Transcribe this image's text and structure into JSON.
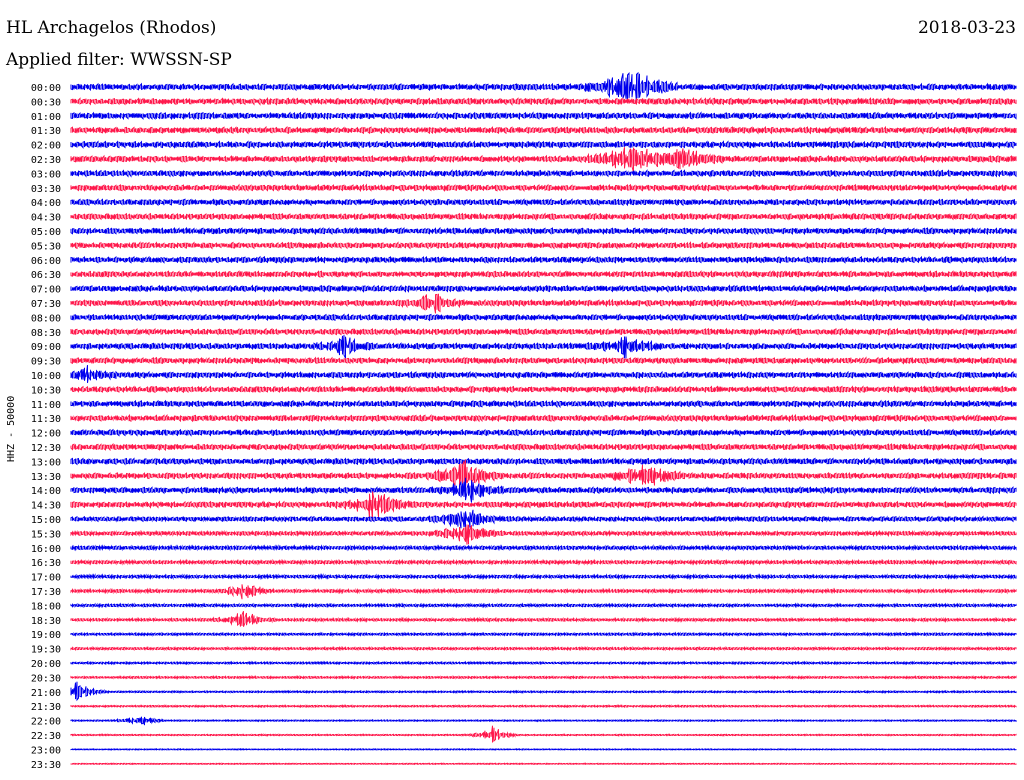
{
  "header": {
    "station": "HL Archagelos (Rhodos)",
    "date": "2018-03-23",
    "filter": "Applied filter: WWSSN-SP"
  },
  "chart_data": {
    "type": "line",
    "title": "HL Archagelos (Rhodos)",
    "ylabel": "HHZ - 50000",
    "trace_colors": [
      "#0000ee",
      "#ff1a4d"
    ],
    "row_labels": [
      "00:00",
      "00:30",
      "01:00",
      "01:30",
      "02:00",
      "02:30",
      "03:00",
      "03:30",
      "04:00",
      "04:30",
      "05:00",
      "05:30",
      "06:00",
      "06:30",
      "07:00",
      "07:30",
      "08:00",
      "08:30",
      "09:00",
      "09:30",
      "10:00",
      "10:30",
      "11:00",
      "11:30",
      "12:00",
      "12:30",
      "13:00",
      "13:30",
      "14:00",
      "14:30",
      "15:00",
      "15:30",
      "16:00",
      "16:30",
      "17:00",
      "17:30",
      "18:00",
      "18:30",
      "19:00",
      "19:30",
      "20:00",
      "20:30",
      "21:00",
      "21:30",
      "22:00",
      "22:30",
      "23:00",
      "23:30"
    ],
    "row_minutes": 30,
    "noise_level": [
      0.9,
      0.9,
      0.9,
      0.9,
      0.9,
      0.9,
      0.85,
      0.85,
      0.85,
      0.85,
      0.85,
      0.85,
      0.85,
      0.85,
      0.85,
      0.85,
      0.85,
      0.85,
      0.85,
      0.85,
      0.85,
      0.85,
      0.85,
      0.85,
      0.85,
      0.85,
      0.85,
      0.85,
      0.85,
      0.85,
      0.7,
      0.6,
      0.55,
      0.5,
      0.45,
      0.45,
      0.4,
      0.4,
      0.35,
      0.35,
      0.3,
      0.3,
      0.25,
      0.25,
      0.2,
      0.2,
      0.15,
      0.15
    ],
    "events": [
      {
        "row": 0,
        "minute": 17.8,
        "amplitude": 6,
        "width": 0.6
      },
      {
        "row": 5,
        "minute": 17.8,
        "amplitude": 4,
        "width": 0.6
      },
      {
        "row": 5,
        "minute": 19.5,
        "amplitude": 3,
        "width": 0.5
      },
      {
        "row": 15,
        "minute": 11.5,
        "amplitude": 3,
        "width": 0.4
      },
      {
        "row": 18,
        "minute": 8.7,
        "amplitude": 3,
        "width": 0.4
      },
      {
        "row": 18,
        "minute": 17.6,
        "amplitude": 3,
        "width": 0.5
      },
      {
        "row": 20,
        "minute": 0.5,
        "amplitude": 2.5,
        "width": 0.4
      },
      {
        "row": 27,
        "minute": 12.5,
        "amplitude": 4,
        "width": 0.5
      },
      {
        "row": 27,
        "minute": 18.2,
        "amplitude": 4,
        "width": 0.5
      },
      {
        "row": 28,
        "minute": 12.6,
        "amplitude": 3,
        "width": 0.5
      },
      {
        "row": 29,
        "minute": 9.6,
        "amplitude": 4,
        "width": 0.5
      },
      {
        "row": 30,
        "minute": 12.5,
        "amplitude": 3,
        "width": 0.5
      },
      {
        "row": 31,
        "minute": 12.5,
        "amplitude": 3,
        "width": 0.5
      },
      {
        "row": 35,
        "minute": 5.5,
        "amplitude": 2.5,
        "width": 0.4
      },
      {
        "row": 37,
        "minute": 5.5,
        "amplitude": 2.5,
        "width": 0.4
      },
      {
        "row": 42,
        "minute": 0.2,
        "amplitude": 2.5,
        "width": 0.4
      },
      {
        "row": 44,
        "minute": 2.2,
        "amplitude": 2,
        "width": 0.3
      },
      {
        "row": 45,
        "minute": 13.4,
        "amplitude": 2.5,
        "width": 0.3
      }
    ]
  }
}
